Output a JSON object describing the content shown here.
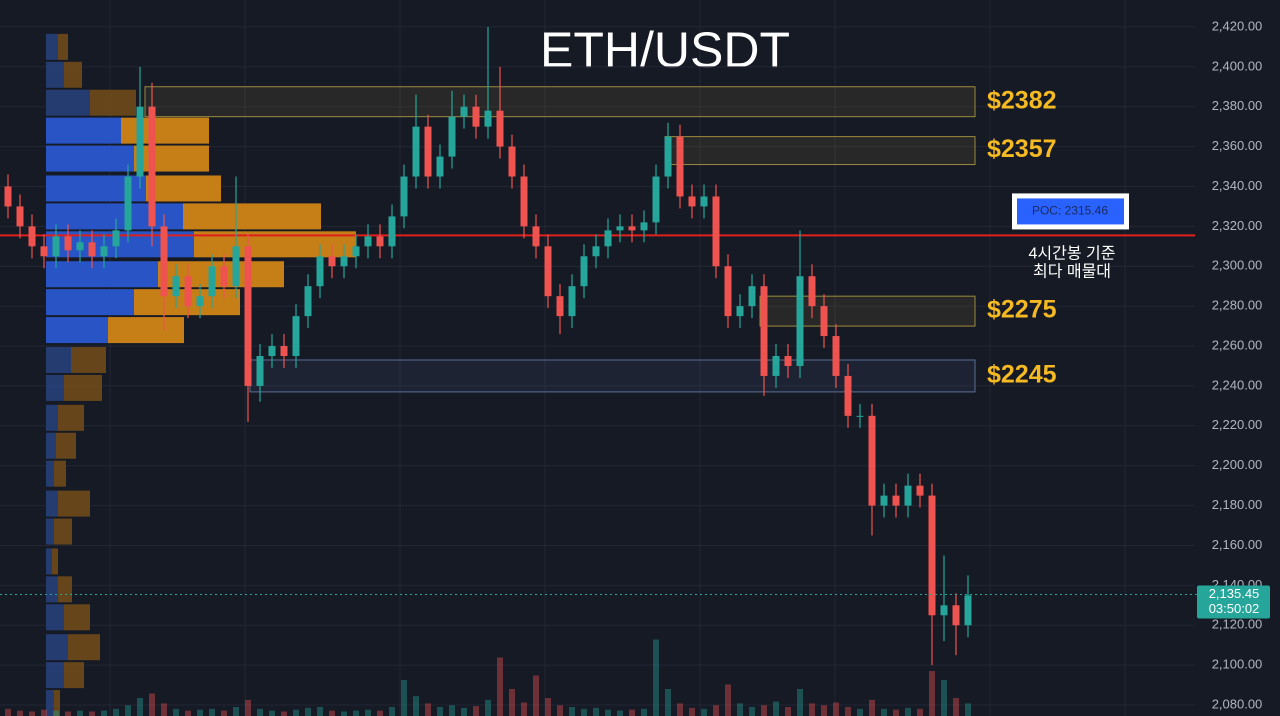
{
  "chart_data": {
    "type": "candlestick",
    "title": "ETH/USDT",
    "ylim": [
      2074.5,
      2433.5
    ],
    "yticks": [
      {
        "value": 2080,
        "label": "2,080.00"
      },
      {
        "value": 2100,
        "label": "2,100.00"
      },
      {
        "value": 2120,
        "label": "2,120.00"
      },
      {
        "value": 2140,
        "label": "2,140.00"
      },
      {
        "value": 2160,
        "label": "2,160.00"
      },
      {
        "value": 2180,
        "label": "2,180.00"
      },
      {
        "value": 2200,
        "label": "2,200.00"
      },
      {
        "value": 2220,
        "label": "2,220.00"
      },
      {
        "value": 2240,
        "label": "2,240.00"
      },
      {
        "value": 2260,
        "label": "2,260.00"
      },
      {
        "value": 2280,
        "label": "2,280.00"
      },
      {
        "value": 2300,
        "label": "2,300.00"
      },
      {
        "value": 2320,
        "label": "2,320.00"
      },
      {
        "value": 2340,
        "label": "2,340.00"
      },
      {
        "value": 2360,
        "label": "2,360.00"
      },
      {
        "value": 2380,
        "label": "2,380.00"
      },
      {
        "value": 2400,
        "label": "2,400.00"
      },
      {
        "value": 2420,
        "label": "2,420.00"
      }
    ],
    "grid": true,
    "up_color": "#26a69a",
    "down_color": "#ef5350",
    "open": [
      2340,
      2330,
      2320,
      2310,
      2305,
      2315,
      2308,
      2312,
      2305,
      2310,
      2318,
      2345,
      2380,
      2320,
      2285,
      2295,
      2280,
      2285,
      2300,
      2290,
      2310,
      2240,
      2255,
      2260,
      2255,
      2275,
      2290,
      2305,
      2300,
      2305,
      2310,
      2315,
      2310,
      2325,
      2345,
      2370,
      2345,
      2355,
      2375,
      2380,
      2370,
      2378,
      2360,
      2345,
      2320,
      2310,
      2285,
      2275,
      2290,
      2305,
      2310,
      2318,
      2320,
      2318,
      2322,
      2345,
      2365,
      2335,
      2330,
      2335,
      2300,
      2275,
      2280,
      2290,
      2245,
      2255,
      2250,
      2295,
      2280,
      2265,
      2245,
      2225,
      2225,
      2180,
      2185,
      2180,
      2190,
      2185,
      2125,
      2130,
      2120
    ],
    "high": [
      2346,
      2336,
      2326,
      2316,
      2321,
      2321,
      2318,
      2318,
      2316,
      2324,
      2351,
      2400,
      2392,
      2326,
      2301,
      2301,
      2291,
      2306,
      2306,
      2345,
      2316,
      2261,
      2266,
      2266,
      2281,
      2296,
      2311,
      2311,
      2311,
      2316,
      2321,
      2321,
      2331,
      2351,
      2386,
      2376,
      2361,
      2388,
      2386,
      2386,
      2420,
      2400,
      2366,
      2351,
      2326,
      2316,
      2291,
      2296,
      2311,
      2316,
      2324,
      2326,
      2326,
      2328,
      2351,
      2372,
      2371,
      2341,
      2341,
      2341,
      2306,
      2286,
      2296,
      2296,
      2261,
      2261,
      2318,
      2301,
      2286,
      2271,
      2251,
      2231,
      2231,
      2191,
      2191,
      2196,
      2196,
      2191,
      2155,
      2136,
      2145
    ],
    "low": [
      2324,
      2314,
      2304,
      2299,
      2299,
      2302,
      2302,
      2299,
      2299,
      2304,
      2312,
      2339,
      2310,
      2268,
      2279,
      2274,
      2274,
      2279,
      2284,
      2284,
      2222,
      2232,
      2249,
      2249,
      2249,
      2269,
      2284,
      2294,
      2294,
      2299,
      2304,
      2304,
      2304,
      2319,
      2339,
      2339,
      2339,
      2349,
      2369,
      2364,
      2364,
      2354,
      2339,
      2314,
      2304,
      2279,
      2266,
      2269,
      2284,
      2299,
      2304,
      2312,
      2312,
      2312,
      2316,
      2339,
      2329,
      2324,
      2324,
      2294,
      2269,
      2269,
      2274,
      2235,
      2239,
      2244,
      2244,
      2274,
      2259,
      2239,
      2219,
      2219,
      2165,
      2174,
      2174,
      2174,
      2179,
      2100,
      2112,
      2105,
      2114
    ],
    "close": [
      2330,
      2320,
      2310,
      2305,
      2315,
      2308,
      2312,
      2305,
      2310,
      2318,
      2345,
      2380,
      2320,
      2285,
      2295,
      2280,
      2285,
      2300,
      2290,
      2310,
      2240,
      2255,
      2260,
      2255,
      2275,
      2290,
      2305,
      2300,
      2305,
      2310,
      2315,
      2310,
      2325,
      2345,
      2370,
      2345,
      2355,
      2375,
      2380,
      2370,
      2378,
      2360,
      2345,
      2320,
      2310,
      2285,
      2275,
      2290,
      2305,
      2310,
      2318,
      2320,
      2318,
      2322,
      2345,
      2365,
      2335,
      2330,
      2335,
      2300,
      2275,
      2280,
      2290,
      2245,
      2255,
      2250,
      2295,
      2280,
      2265,
      2245,
      2225,
      2225,
      2180,
      2185,
      2180,
      2190,
      2185,
      2125,
      2130,
      2120,
      2135
    ],
    "volume": [
      8,
      6,
      5,
      7,
      6,
      5,
      6,
      5,
      6,
      8,
      12,
      20,
      25,
      14,
      8,
      6,
      7,
      8,
      6,
      10,
      18,
      8,
      6,
      5,
      7,
      9,
      10,
      6,
      5,
      6,
      7,
      6,
      10,
      40,
      22,
      14,
      10,
      12,
      9,
      11,
      18,
      65,
      30,
      15,
      45,
      20,
      12,
      10,
      8,
      9,
      7,
      6,
      7,
      8,
      85,
      30,
      14,
      9,
      8,
      12,
      35,
      14,
      10,
      12,
      16,
      10,
      30,
      14,
      12,
      15,
      10,
      8,
      18,
      8,
      7,
      9,
      8,
      50,
      40,
      20,
      14
    ],
    "volume_profile": {
      "prices": [
        2410,
        2396,
        2382,
        2368,
        2354,
        2339,
        2325,
        2311,
        2296,
        2282,
        2268,
        2253,
        2239,
        2224,
        2210,
        2196,
        2181,
        2167,
        2152,
        2138,
        2124,
        2109,
        2095,
        2081
      ],
      "buy": [
        12,
        18,
        44,
        75,
        88,
        100,
        137,
        148,
        112,
        88,
        62,
        25,
        18,
        12,
        10,
        8,
        12,
        8,
        6,
        12,
        18,
        22,
        18,
        8
      ],
      "sell": [
        10,
        18,
        46,
        88,
        75,
        75,
        138,
        162,
        126,
        106,
        76,
        35,
        38,
        26,
        20,
        12,
        32,
        18,
        6,
        14,
        26,
        32,
        20,
        6
      ]
    },
    "zones": [
      {
        "label": "$2382",
        "low": 2375,
        "high": 2390
      },
      {
        "label": "$2357",
        "low": 2351,
        "high": 2365
      },
      {
        "label": "$2275",
        "low": 2270,
        "high": 2285
      },
      {
        "label": "$2245",
        "low": 2237,
        "high": 2253
      }
    ],
    "poc": {
      "value": 2315.46,
      "label": "POC: 2315.46"
    },
    "poc_note": [
      "4시간봉 기준",
      "최다 매물대"
    ],
    "last_price": {
      "value": 2135.45,
      "label": "2,135.45"
    },
    "countdown": "03:50:02"
  }
}
